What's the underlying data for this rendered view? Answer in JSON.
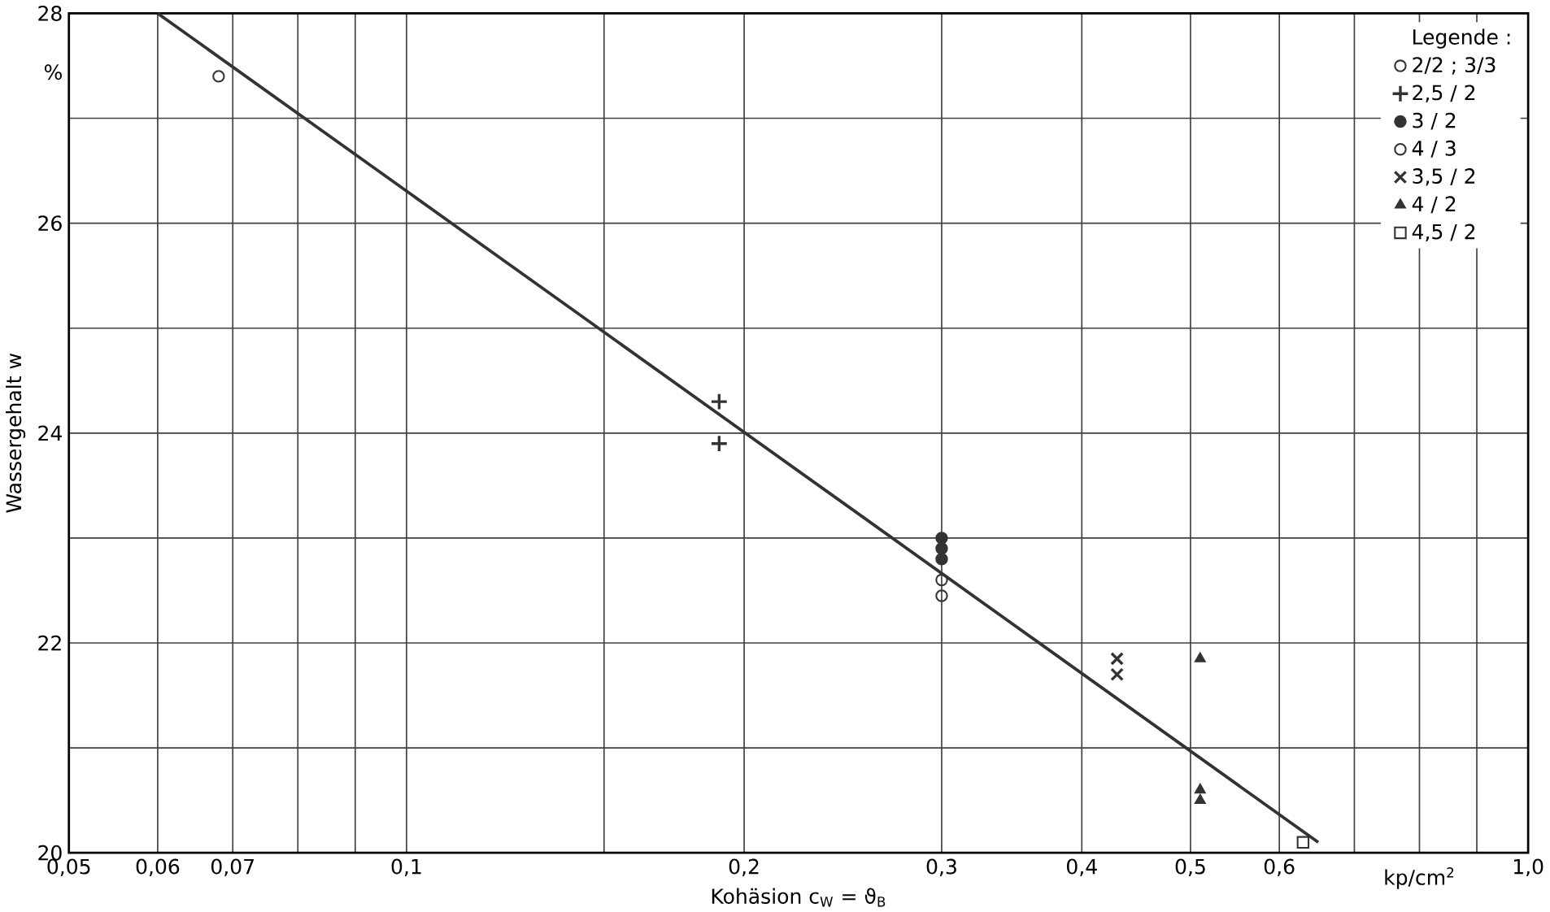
{
  "chart_data": {
    "type": "scatter",
    "xlabel": "Kohäsion  c$_{W}$ = ϑ$_{B}$",
    "ylabel": "Wassergehalt  w",
    "legend_title": "Legende :",
    "legend": "top right",
    "log": "x",
    "grid": true,
    "annotations": [
      "%",
      "kp/cm$^{2}$"
    ],
    "xlim": [
      0.05,
      1.0
    ],
    "xticks": [
      {
        "value": 0.05,
        "label": "0,05"
      },
      {
        "value": 0.06,
        "label": "0,06"
      },
      {
        "value": 0.07,
        "label": "0,07"
      },
      {
        "value": 0.08,
        "label": null
      },
      {
        "value": 0.09,
        "label": null
      },
      {
        "value": 0.1,
        "label": "0,1"
      },
      {
        "value": 0.15,
        "label": null
      },
      {
        "value": 0.2,
        "label": "0,2"
      },
      {
        "value": 0.3,
        "label": "0,3"
      },
      {
        "value": 0.4,
        "label": "0,4"
      },
      {
        "value": 0.5,
        "label": "0,5"
      },
      {
        "value": 0.6,
        "label": "0,6"
      },
      {
        "value": 0.7,
        "label": null
      },
      {
        "value": 0.8,
        "label": null
      },
      {
        "value": 0.9,
        "label": null
      },
      {
        "value": 1.0,
        "label": "1,0"
      }
    ],
    "ylim": [
      20,
      28
    ],
    "yticks": [
      20,
      {
        "value": 21,
        "label": null
      },
      22,
      {
        "value": 23,
        "label": null
      },
      24,
      {
        "value": 25,
        "label": null
      },
      26,
      {
        "value": 27,
        "label": null
      },
      28
    ],
    "series": [
      {
        "type": "line",
        "color": "#333333",
        "marker": "none",
        "x": [
          0.06,
          0.65
        ],
        "values": [
          28,
          20.1
        ]
      },
      {
        "name": "2/2 ; 3/3",
        "color": "#333333",
        "marker": "circle",
        "x": [
          0.068
        ],
        "values": [
          27.4
        ]
      },
      {
        "name": "2,5 / 2",
        "color": "#333333",
        "marker": "plus",
        "x": [
          0.19,
          0.19
        ],
        "values": [
          24.3,
          23.9
        ]
      },
      {
        "name": "3 / 2",
        "color": "#333333",
        "marker": "dot",
        "x": [
          0.3,
          0.3,
          0.3
        ],
        "values": [
          23.0,
          22.9,
          22.8
        ]
      },
      {
        "name": "4 / 3",
        "color": "#333333",
        "marker": "circle",
        "x": [
          0.3,
          0.3
        ],
        "values": [
          22.6,
          22.45
        ]
      },
      {
        "name": "3,5 / 2",
        "color": "#333333",
        "marker": "cross",
        "x": [
          0.43,
          0.43
        ],
        "values": [
          21.85,
          21.7
        ]
      },
      {
        "name": "4 / 2",
        "color": "#333333",
        "marker": "triangle",
        "x": [
          0.51,
          0.51,
          0.51
        ],
        "values": [
          21.85,
          20.6,
          20.5
        ]
      },
      {
        "name": "4,5 / 2",
        "color": "#333333",
        "marker": "square",
        "x": [
          0.63
        ],
        "values": [
          20.1
        ]
      }
    ]
  }
}
